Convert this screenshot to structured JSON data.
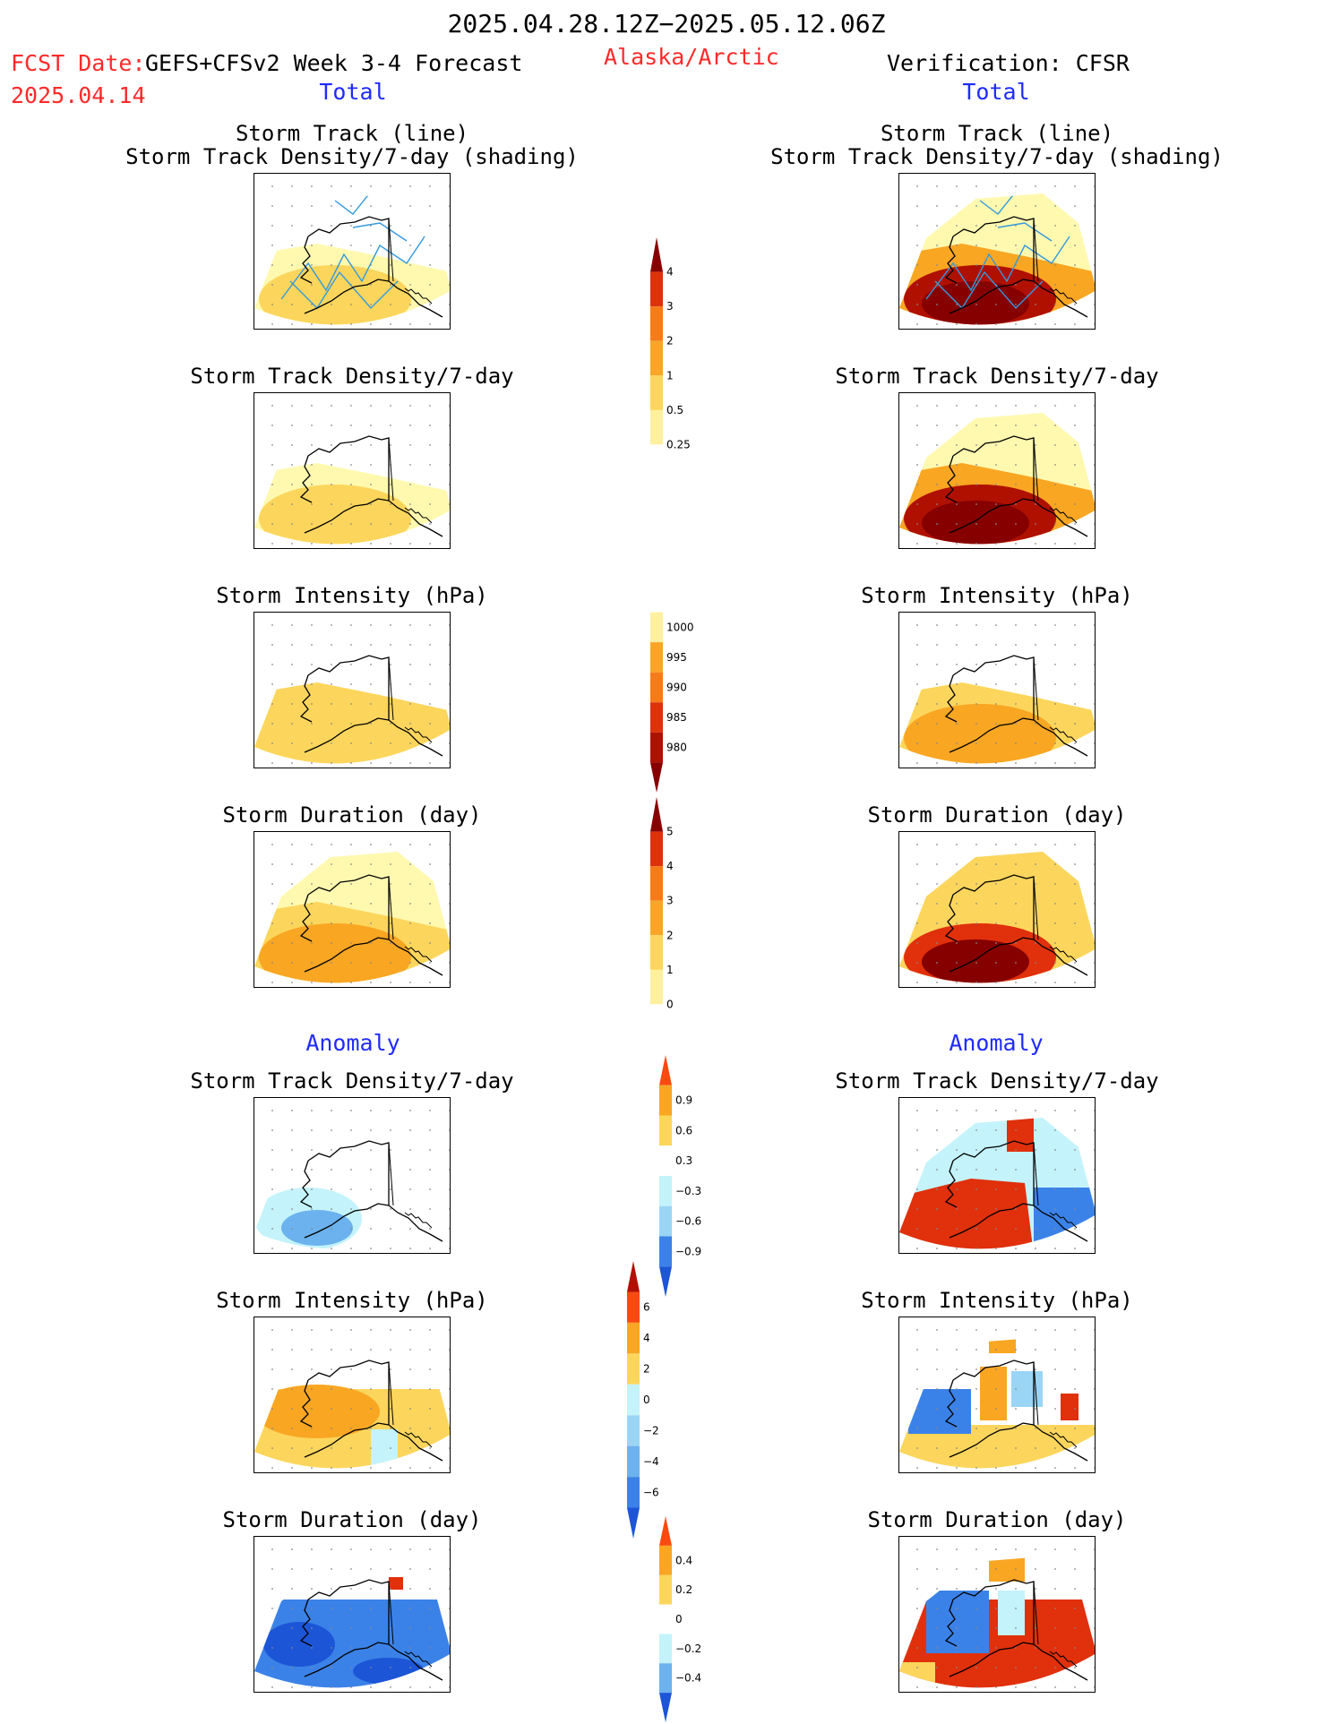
{
  "header": {
    "title": "2025.04.28.12Z−2025.05.12.06Z",
    "fcst_prefix": "FCST Date:",
    "fcst_model": "GEFS+CFSv2 Week 3-4 Forecast",
    "region": "Alaska/Arctic",
    "verification": "Verification: CFSR",
    "fcst_date": "2025.04.14",
    "left_total": "Total",
    "right_total": "Total",
    "left_anomaly": "Anomaly",
    "right_anomaly": "Anomaly"
  },
  "panel_titles": {
    "track_line": "Storm Track (line)",
    "track_density_shading": "Storm Track Density/7-day (shading)",
    "track_density": "Storm Track Density/7-day",
    "intensity": "Storm Intensity (hPa)",
    "duration": "Storm Duration (day)"
  },
  "colors": {
    "warm": [
      "#fff9b0",
      "#fcd65c",
      "#f9a623",
      "#fa7a14",
      "#e0300c",
      "#b01000",
      "#860000"
    ],
    "cool": [
      "#c4f3fb",
      "#9ad5f5",
      "#6bb2ee",
      "#3b82e8",
      "#1c55d6"
    ],
    "track_line": "#3399dd",
    "outline": "#000000"
  },
  "chart_data": [
    {
      "type": "colorbar",
      "title": "",
      "applies_to": "Storm Track Density/7-day (total)",
      "ticks": [
        "4",
        "3",
        "2",
        "1",
        "0.5",
        "0.25"
      ],
      "colors_top_to_bottom": [
        "#860000",
        "#e0300c",
        "#fa7a14",
        "#f9a623",
        "#fcd65c",
        "#fff0a0",
        "#ffffff"
      ]
    },
    {
      "type": "colorbar",
      "title": "",
      "applies_to": "Storm Intensity (total)",
      "ticks": [
        "1000",
        "995",
        "990",
        "985",
        "980"
      ],
      "colors_top_to_bottom": [
        "#ffffff",
        "#fff0a0",
        "#f9a623",
        "#fa7a14",
        "#e0300c",
        "#b01000",
        "#860000"
      ]
    },
    {
      "type": "colorbar",
      "title": "",
      "applies_to": "Storm Duration (total)",
      "ticks": [
        "5",
        "4",
        "3",
        "2",
        "1",
        "0"
      ],
      "colors_top_to_bottom": [
        "#860000",
        "#e0300c",
        "#fa7a14",
        "#f9a623",
        "#fcd65c",
        "#fff0a0",
        "#ffffff"
      ]
    },
    {
      "type": "colorbar",
      "title": "",
      "applies_to": "Storm Track Density anomaly",
      "ticks": [
        "0.9",
        "0.6",
        "0.3",
        "−0.3",
        "−0.6",
        "−0.9"
      ],
      "colors_top_to_bottom": [
        "#fa4a10",
        "#f9a623",
        "#fcd65c",
        "#ffffff",
        "#c4f3fb",
        "#9ad5f5",
        "#3b82e8",
        "#1c55d6"
      ]
    },
    {
      "type": "colorbar",
      "title": "",
      "applies_to": "Storm Intensity anomaly",
      "ticks": [
        "6",
        "4",
        "2",
        "0",
        "−2",
        "−4",
        "−6"
      ],
      "colors_top_to_bottom": [
        "#b01000",
        "#fa4a10",
        "#f9a623",
        "#fcd65c",
        "#c4f3fb",
        "#9ad5f5",
        "#6bb2ee",
        "#3b82e8",
        "#1c55d6"
      ]
    },
    {
      "type": "colorbar",
      "title": "",
      "applies_to": "Storm Duration anomaly",
      "ticks": [
        "0.4",
        "0.2",
        "0",
        "−0.2",
        "−0.4"
      ],
      "colors_top_to_bottom": [
        "#fa4a10",
        "#f9a623",
        "#fcd65c",
        "#ffffff",
        "#c4f3fb",
        "#6bb2ee",
        "#1c55d6"
      ]
    },
    {
      "type": "heatmap",
      "title": "",
      "panels": [
        {
          "name": "fcst-track-line",
          "title_key": "track_line",
          "subtitle_key": "track_density_shading",
          "level_south": 2,
          "level_mid": 1,
          "level_north": 0,
          "tracks": true
        },
        {
          "name": "cfsr-track-line",
          "title_key": "track_line",
          "subtitle_key": "track_density_shading",
          "level_south": 6,
          "level_mid": 3,
          "level_north": 1,
          "tracks": true
        },
        {
          "name": "fcst-track-density",
          "title_key": "track_density",
          "level_south": 2,
          "level_mid": 1,
          "level_north": 0
        },
        {
          "name": "cfsr-track-density",
          "title_key": "track_density",
          "level_south": 6,
          "level_mid": 3,
          "level_north": 1
        },
        {
          "name": "fcst-intensity",
          "title_key": "intensity",
          "level_south": 2,
          "level_mid": 2,
          "level_north": 0
        },
        {
          "name": "cfsr-intensity",
          "title_key": "intensity",
          "level_south": 3,
          "level_mid": 2,
          "level_north": 0
        },
        {
          "name": "fcst-duration",
          "title_key": "duration",
          "level_south": 3,
          "level_mid": 2,
          "level_north": 1
        },
        {
          "name": "cfsr-duration",
          "title_key": "duration",
          "level_south": 5,
          "level_mid": 2,
          "level_north": 2
        },
        {
          "name": "fcst-track-density-anom",
          "title_key": "track_density",
          "anomaly": "cool-weak"
        },
        {
          "name": "cfsr-track-density-anom",
          "title_key": "track_density",
          "anomaly": "mixed-strong"
        },
        {
          "name": "fcst-intensity-anom",
          "title_key": "intensity",
          "anomaly": "warm-weak"
        },
        {
          "name": "cfsr-intensity-anom",
          "title_key": "intensity",
          "anomaly": "mixed-intensity"
        },
        {
          "name": "fcst-duration-anom",
          "title_key": "duration",
          "anomaly": "cool-strong"
        },
        {
          "name": "cfsr-duration-anom",
          "title_key": "duration",
          "anomaly": "mixed-duration"
        }
      ]
    }
  ]
}
